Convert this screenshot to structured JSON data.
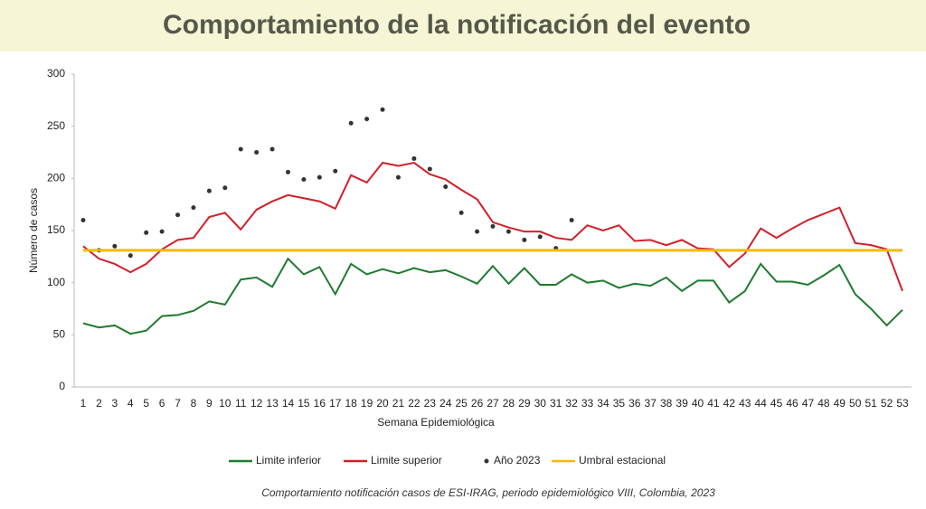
{
  "chart_data": {
    "type": "line",
    "title": "Comportamiento de la notificación del evento",
    "x_label": "Semana Epidemiológica",
    "y_label": "Número de casos",
    "caption": "Comportamiento notificación casos de ESI-IRAG, periodo epidemiológico VIII, Colombia, 2023",
    "categories": [
      "1",
      "2",
      "3",
      "4",
      "5",
      "6",
      "7",
      "8",
      "9",
      "10",
      "11",
      "12",
      "13",
      "14",
      "15",
      "16",
      "17",
      "18",
      "19",
      "20",
      "21",
      "22",
      "23",
      "24",
      "25",
      "26",
      "27",
      "28",
      "29",
      "30",
      "31",
      "32",
      "33",
      "34",
      "35",
      "36",
      "37",
      "38",
      "39",
      "40",
      "41",
      "42",
      "43",
      "44",
      "45",
      "46",
      "47",
      "48",
      "49",
      "50",
      "51",
      "52",
      "53"
    ],
    "ylim": [
      0,
      300
    ],
    "yticks": [
      0,
      50,
      100,
      150,
      200,
      250,
      300
    ],
    "legend": "bottom",
    "series": [
      {
        "name": "Limite inferior",
        "color": "#1e7b2e",
        "mode": "lines",
        "values": [
          61,
          57,
          59,
          51,
          54,
          68,
          69,
          73,
          82,
          79,
          103,
          105,
          96,
          123,
          108,
          115,
          89,
          118,
          108,
          113,
          109,
          114,
          110,
          112,
          106,
          99,
          116,
          99,
          114,
          98,
          98,
          108,
          100,
          102,
          95,
          99,
          97,
          105,
          92,
          102,
          102,
          81,
          92,
          118,
          101,
          101,
          98,
          107,
          117,
          89,
          75,
          59,
          74
        ]
      },
      {
        "name": "Limite superior",
        "color": "#d0202a",
        "mode": "lines",
        "values": [
          135,
          123,
          118,
          110,
          118,
          132,
          141,
          143,
          163,
          167,
          151,
          170,
          178,
          184,
          181,
          178,
          171,
          203,
          196,
          215,
          212,
          215,
          204,
          199,
          189,
          180,
          158,
          153,
          149,
          149,
          143,
          141,
          155,
          150,
          155,
          140,
          141,
          136,
          141,
          133,
          132,
          115,
          128,
          152,
          143,
          152,
          160,
          166,
          172,
          138,
          136,
          132,
          92
        ]
      },
      {
        "name": "Año 2023",
        "color": "#333333",
        "mode": "markers",
        "values": [
          160,
          131,
          135,
          126,
          148,
          149,
          165,
          172,
          188,
          191,
          228,
          225,
          228,
          206,
          199,
          201,
          207,
          253,
          257,
          266,
          201,
          219,
          209,
          192,
          167,
          149,
          154,
          149,
          141,
          144,
          133,
          160,
          null,
          null,
          null,
          null,
          null,
          null,
          null,
          null,
          null,
          null,
          null,
          null,
          null,
          null,
          null,
          null,
          null,
          null,
          null,
          null,
          null
        ]
      },
      {
        "name": "Umbral estacional",
        "color": "#f5b800",
        "mode": "lines",
        "values": [
          131,
          131,
          131,
          131,
          131,
          131,
          131,
          131,
          131,
          131,
          131,
          131,
          131,
          131,
          131,
          131,
          131,
          131,
          131,
          131,
          131,
          131,
          131,
          131,
          131,
          131,
          131,
          131,
          131,
          131,
          131,
          131,
          131,
          131,
          131,
          131,
          131,
          131,
          131,
          131,
          131,
          131,
          131,
          131,
          131,
          131,
          131,
          131,
          131,
          131,
          131,
          131,
          131
        ]
      }
    ]
  }
}
